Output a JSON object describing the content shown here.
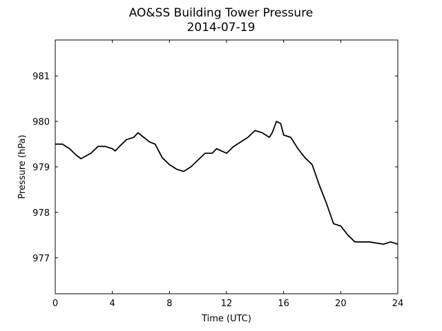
{
  "chart_data": {
    "type": "line",
    "title": "AO&SS Building Tower Pressure",
    "subtitle": "2014-07-19",
    "x_label": "Time (UTC)",
    "y_label": "Pressure (hPa)",
    "color": "#000000",
    "x": [
      0,
      0.5,
      1,
      1.5,
      1.8,
      2.2,
      2.5,
      3,
      3.5,
      4,
      4.2,
      4.5,
      5,
      5.5,
      5.8,
      6.2,
      6.6,
      7,
      7.5,
      8,
      8.5,
      9,
      9.5,
      10,
      10.5,
      11,
      11.3,
      12,
      12.5,
      13,
      13.5,
      14,
      14.5,
      15,
      15.2,
      15.5,
      15.8,
      16,
      16.5,
      17,
      17.5,
      18,
      18.5,
      19,
      19.5,
      20,
      20.5,
      21,
      21.5,
      22,
      23,
      23.5,
      24
    ],
    "values": [
      979.5,
      979.5,
      979.4,
      979.25,
      979.18,
      979.25,
      979.3,
      979.45,
      979.45,
      979.4,
      979.35,
      979.45,
      979.6,
      979.65,
      979.75,
      979.65,
      979.55,
      979.5,
      979.2,
      979.05,
      978.95,
      978.9,
      979.0,
      979.15,
      979.3,
      979.3,
      979.4,
      979.3,
      979.45,
      979.55,
      979.65,
      979.8,
      979.75,
      979.65,
      979.75,
      980.0,
      979.95,
      979.7,
      979.65,
      979.4,
      979.2,
      979.05,
      978.6,
      978.2,
      977.75,
      977.7,
      977.5,
      977.35,
      977.35,
      977.35,
      977.3,
      977.35,
      977.3
    ],
    "xlim": [
      0,
      24
    ],
    "xticks": [
      0,
      4,
      8,
      12,
      16,
      20,
      24
    ],
    "ylim": [
      976.21,
      981.79
    ],
    "yticks": [
      977,
      978,
      979,
      980,
      981
    ]
  }
}
